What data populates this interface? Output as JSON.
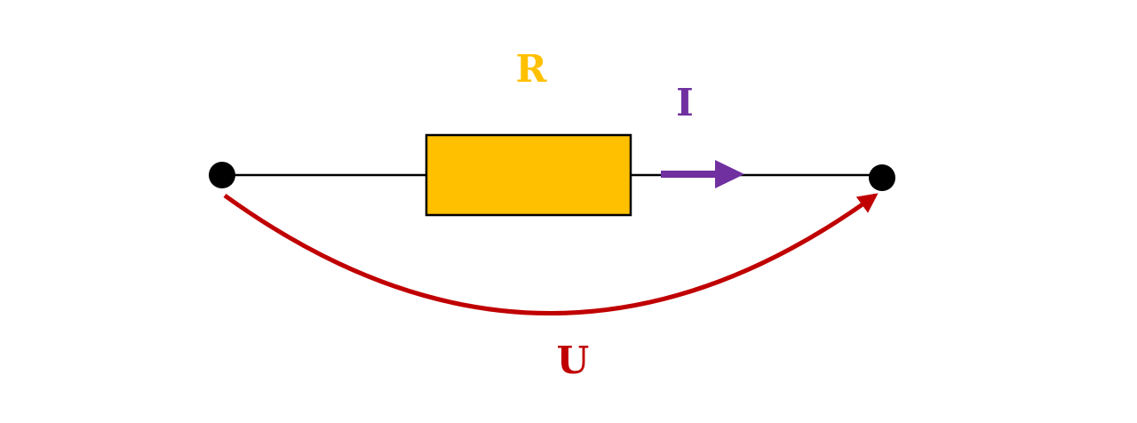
{
  "labels": {
    "resistance": "R",
    "current": "I",
    "voltage": "U"
  },
  "colors": {
    "background": "#ffffff",
    "wire": "#000000",
    "terminal": "#000000",
    "resistor_fill": "#ffc000",
    "resistor_stroke": "#000000",
    "resistance_label": "#ffc000",
    "current_arrow": "#7030a0",
    "current_label": "#7030a0",
    "voltage_arrow": "#c00000",
    "voltage_label": "#c00000"
  }
}
